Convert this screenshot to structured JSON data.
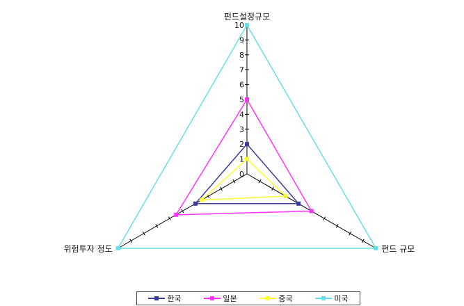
{
  "chart_data": {
    "type": "radar",
    "axes": [
      "펀드설정규모",
      "펀드 규모",
      "위험투자 정도"
    ],
    "scale": {
      "min": 0,
      "max": 10,
      "ticks": [
        0,
        1,
        2,
        3,
        4,
        5,
        6,
        7,
        8,
        9,
        10
      ]
    },
    "series": [
      {
        "name": "한국",
        "values": [
          2,
          4,
          4
        ],
        "color": "#3b3b9a"
      },
      {
        "name": "일본",
        "values": [
          5,
          5,
          5.5
        ],
        "color": "#ff33ff"
      },
      {
        "name": "중국",
        "values": [
          1,
          3,
          3.5
        ],
        "color": "#ffff33"
      },
      {
        "name": "미국",
        "values": [
          10,
          10,
          10
        ],
        "color": "#66e0e6"
      }
    ]
  }
}
